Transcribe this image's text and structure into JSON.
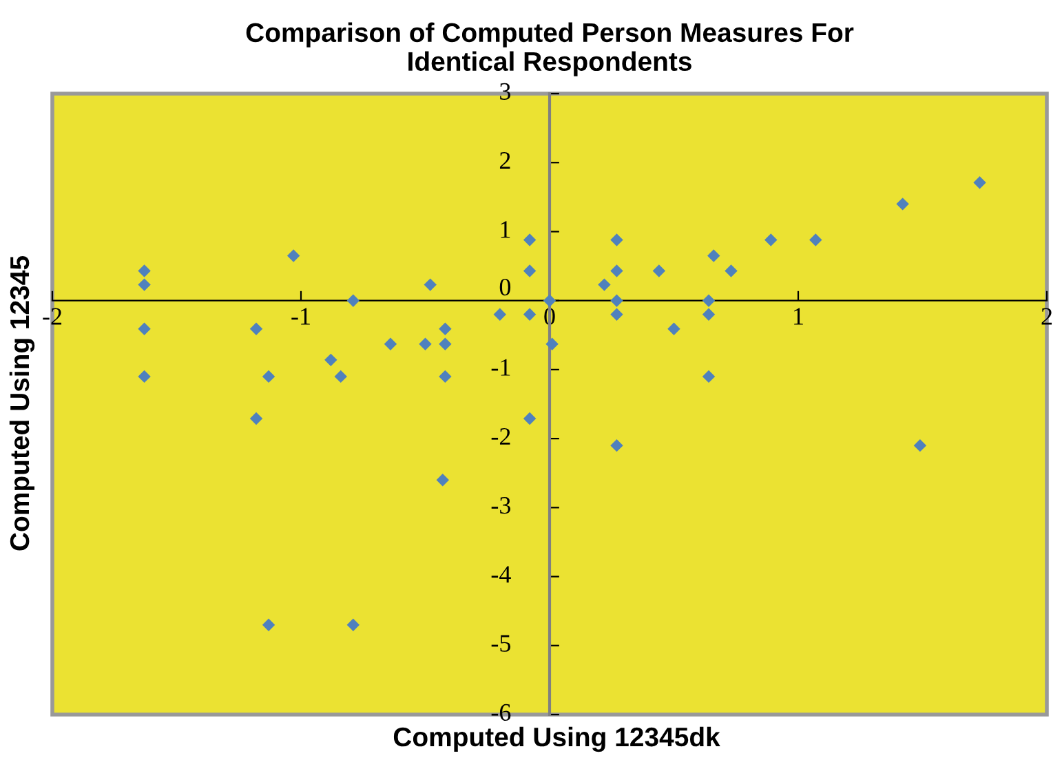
{
  "chart_data": {
    "type": "scatter",
    "title": "Comparison of Computed Person Measures For\nIdentical Respondents",
    "xlabel": "Computed Using 12345dk",
    "ylabel": "Computed Using 12345",
    "x": [
      -1.63,
      -1.63,
      -1.63,
      -1.63,
      -1.18,
      -1.18,
      -1.13,
      -1.03,
      -0.88,
      -0.84,
      -0.79,
      -0.64,
      -0.5,
      -0.48,
      -0.42,
      -0.42,
      -0.42,
      -0.43,
      -0.2,
      -0.08,
      -0.08,
      -0.08,
      -0.08,
      0,
      0.01,
      0.27,
      0.27,
      0.27,
      0.27,
      0.27,
      0.22,
      0.44,
      0.5,
      0.64,
      0.64,
      0.64,
      0.66,
      0.73,
      0.89,
      1.07,
      1.42,
      1.49,
      1.73,
      -1.13,
      -0.79
    ],
    "values": [
      0.43,
      0.23,
      -0.41,
      -1.1,
      -0.41,
      -1.71,
      -1.1,
      0.65,
      -0.86,
      -1.1,
      0,
      -0.63,
      -0.63,
      0.23,
      -0.41,
      -0.63,
      -1.1,
      -2.6,
      -0.2,
      0.88,
      0.43,
      -0.2,
      -1.71,
      0,
      -0.63,
      0.88,
      0.43,
      0,
      -0.2,
      -2.1,
      0.23,
      0.43,
      -0.41,
      0,
      -0.2,
      -1.1,
      0.65,
      0.43,
      0.88,
      0.88,
      1.4,
      -2.1,
      1.71,
      -4.7,
      -4.7
    ],
    "color": "#4f81bd",
    "marker": "diamond",
    "xlim": [
      -2,
      2
    ],
    "ylim": [
      -6,
      3
    ],
    "xticks": [
      -2,
      -1,
      0,
      1,
      2
    ],
    "yticks": [
      -6,
      -5,
      -4,
      -3,
      -2,
      -1,
      0,
      1,
      2,
      3
    ],
    "grid": false
  }
}
